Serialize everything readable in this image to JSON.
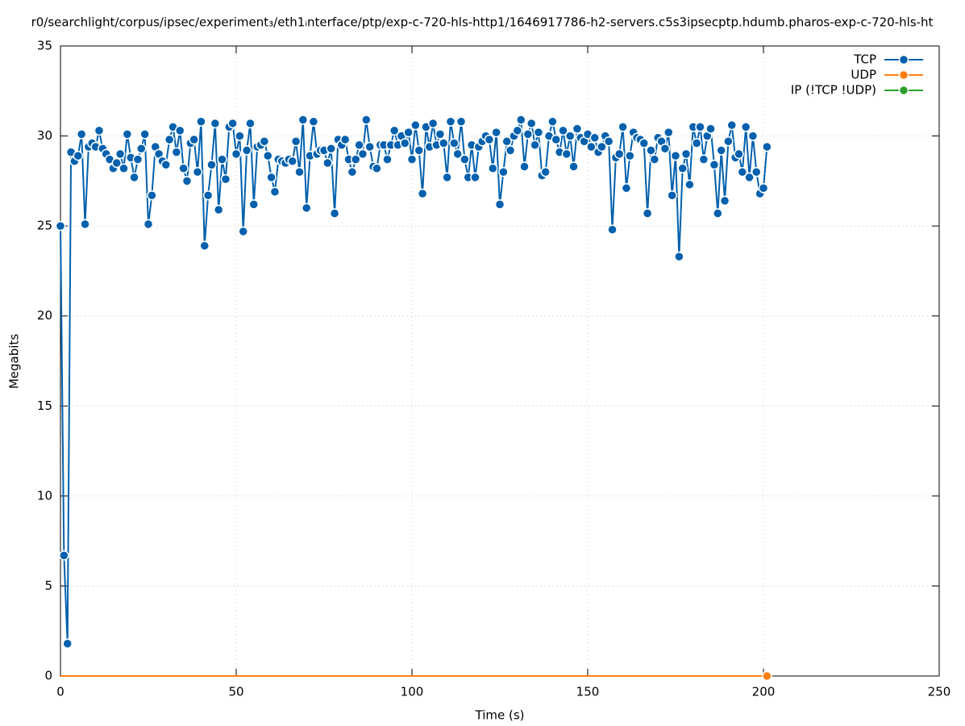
{
  "chart_data": {
    "type": "line",
    "title": "r0/searchlight/corpus/ipsec/experiment₃/eth1ᵢnterface/ptp/exp-c-720-hls-http1/1646917786-h2-servers.c5s3ipsecptp.hdumb.pharos-exp-c-720-hls-ht",
    "x_label": "Time (s)",
    "y_label": "Megabits",
    "xlim": [
      0,
      250
    ],
    "xticks": [
      0,
      50,
      100,
      150,
      200,
      250
    ],
    "ylim": [
      0,
      35
    ],
    "yticks": [
      0,
      5,
      10,
      15,
      20,
      25,
      30,
      35
    ],
    "grid": true,
    "legend": "top-right",
    "x": [
      0,
      1,
      2,
      3,
      4,
      5,
      6,
      7,
      8,
      9,
      10,
      11,
      12,
      13,
      14,
      15,
      16,
      17,
      18,
      19,
      20,
      21,
      22,
      23,
      24,
      25,
      26,
      27,
      28,
      29,
      30,
      31,
      32,
      33,
      34,
      35,
      36,
      37,
      38,
      39,
      40,
      41,
      42,
      43,
      44,
      45,
      46,
      47,
      48,
      49,
      50,
      51,
      52,
      53,
      54,
      55,
      56,
      57,
      58,
      59,
      60,
      61,
      62,
      63,
      64,
      65,
      66,
      67,
      68,
      69,
      70,
      71,
      72,
      73,
      74,
      75,
      76,
      77,
      78,
      79,
      80,
      81,
      82,
      83,
      84,
      85,
      86,
      87,
      88,
      89,
      90,
      91,
      92,
      93,
      94,
      95,
      96,
      97,
      98,
      99,
      100,
      101,
      102,
      103,
      104,
      105,
      106,
      107,
      108,
      109,
      110,
      111,
      112,
      113,
      114,
      115,
      116,
      117,
      118,
      119,
      120,
      121,
      122,
      123,
      124,
      125,
      126,
      127,
      128,
      129,
      130,
      131,
      132,
      133,
      134,
      135,
      136,
      137,
      138,
      139,
      140,
      141,
      142,
      143,
      144,
      145,
      146,
      147,
      148,
      149,
      150,
      151,
      152,
      153,
      154,
      155,
      156,
      157,
      158,
      159,
      160,
      161,
      162,
      163,
      164,
      165,
      166,
      167,
      168,
      169,
      170,
      171,
      172,
      173,
      174,
      175,
      176,
      177,
      178,
      179,
      180,
      181,
      182,
      183,
      184,
      185,
      186,
      187,
      188,
      189,
      190,
      191,
      192,
      193,
      194,
      195,
      196,
      197,
      198,
      199,
      200,
      201
    ],
    "series": [
      {
        "name": "TCP",
        "color": "#0060ad",
        "values": [
          25,
          6.7,
          1.8,
          29.1,
          28.6,
          28.9,
          30.1,
          25.1,
          29.4,
          29.6,
          29.4,
          30.3,
          29.3,
          29.0,
          28.7,
          28.2,
          28.5,
          29.0,
          28.2,
          30.1,
          28.8,
          27.7,
          28.7,
          29.3,
          30.1,
          25.1,
          26.7,
          29.4,
          29.0,
          28.6,
          28.4,
          29.8,
          30.5,
          29.1,
          30.3,
          28.2,
          27.5,
          29.6,
          29.8,
          28.0,
          30.8,
          23.9,
          26.7,
          28.4,
          30.7,
          25.9,
          28.7,
          27.6,
          30.5,
          30.7,
          29.0,
          30.0,
          24.7,
          29.2,
          30.7,
          26.2,
          29.4,
          29.5,
          29.7,
          28.9,
          27.7,
          26.9,
          28.7,
          28.6,
          28.5,
          28.7,
          28.6,
          29.7,
          28.0,
          30.9,
          26.0,
          28.9,
          30.8,
          29.0,
          29.2,
          29.2,
          28.5,
          29.3,
          25.7,
          29.8,
          29.5,
          29.8,
          28.7,
          28.0,
          28.7,
          29.5,
          29.0,
          30.9,
          29.4,
          28.3,
          28.2,
          29.5,
          29.5,
          28.7,
          29.5,
          30.3,
          29.5,
          30.0,
          29.6,
          30.2,
          28.7,
          30.6,
          29.2,
          26.8,
          30.5,
          29.4,
          30.7,
          29.5,
          30.1,
          29.6,
          27.7,
          30.8,
          29.6,
          29.0,
          30.8,
          28.7,
          27.7,
          29.5,
          27.7,
          29.4,
          29.7,
          30.0,
          29.8,
          28.2,
          30.2,
          26.2,
          28.0,
          29.7,
          29.2,
          30.0,
          30.3,
          30.9,
          28.3,
          30.1,
          30.7,
          29.5,
          30.2,
          27.8,
          28.0,
          30.0,
          30.8,
          29.8,
          29.1,
          30.3,
          29.0,
          30.0,
          28.3,
          30.4,
          29.9,
          29.7,
          30.1,
          29.4,
          29.9,
          29.1,
          29.4,
          30.0,
          29.7,
          24.8,
          28.8,
          29.0,
          30.5,
          27.1,
          28.9,
          30.2,
          29.9,
          29.8,
          29.6,
          25.7,
          29.2,
          28.7,
          29.9,
          29.7,
          29.3,
          30.2,
          26.7,
          28.9,
          23.3,
          28.2,
          29.0,
          27.3,
          30.5,
          29.6,
          30.5,
          28.7,
          30.0,
          30.4,
          28.4,
          25.7,
          29.2,
          26.4,
          29.7,
          30.6,
          28.8,
          29.0,
          28.0,
          30.5,
          27.7,
          30.0,
          28.0,
          26.8,
          27.1,
          29.4
        ]
      },
      {
        "name": "UDP",
        "color": "#ff7f0e",
        "values": [
          0,
          0,
          0,
          0,
          0,
          0,
          0,
          0,
          0,
          0,
          0,
          0,
          0,
          0,
          0,
          0,
          0,
          0,
          0,
          0,
          0,
          0,
          0,
          0,
          0,
          0,
          0,
          0,
          0,
          0,
          0,
          0,
          0,
          0,
          0,
          0,
          0,
          0,
          0,
          0,
          0,
          0,
          0,
          0,
          0,
          0,
          0,
          0,
          0,
          0,
          0,
          0,
          0,
          0,
          0,
          0,
          0,
          0,
          0,
          0,
          0,
          0,
          0,
          0,
          0,
          0,
          0,
          0,
          0,
          0,
          0,
          0,
          0,
          0,
          0,
          0,
          0,
          0,
          0,
          0,
          0,
          0,
          0,
          0,
          0,
          0,
          0,
          0,
          0,
          0,
          0,
          0,
          0,
          0,
          0,
          0,
          0,
          0,
          0,
          0,
          0,
          0,
          0,
          0,
          0,
          0,
          0,
          0,
          0,
          0,
          0,
          0,
          0,
          0,
          0,
          0,
          0,
          0,
          0,
          0,
          0,
          0,
          0,
          0,
          0,
          0,
          0,
          0,
          0,
          0,
          0,
          0,
          0,
          0,
          0,
          0,
          0,
          0,
          0,
          0,
          0,
          0,
          0,
          0,
          0,
          0,
          0,
          0,
          0,
          0,
          0,
          0,
          0,
          0,
          0,
          0,
          0,
          0,
          0,
          0,
          0,
          0,
          0,
          0,
          0,
          0,
          0,
          0,
          0,
          0,
          0,
          0,
          0,
          0,
          0,
          0,
          0,
          0,
          0,
          0,
          0,
          0,
          0,
          0,
          0,
          0,
          0,
          0,
          0,
          0,
          0,
          0,
          0,
          0,
          0,
          0,
          0,
          0,
          0,
          0,
          0,
          0
        ]
      },
      {
        "name": "IP (!TCP  !UDP)",
        "color": "#2ca02c",
        "values": [
          0,
          0,
          0,
          0,
          0,
          0,
          0,
          0,
          0,
          0,
          0,
          0,
          0,
          0,
          0,
          0,
          0,
          0,
          0,
          0,
          0,
          0,
          0,
          0,
          0,
          0,
          0,
          0,
          0,
          0,
          0,
          0,
          0,
          0,
          0,
          0,
          0,
          0,
          0,
          0,
          0,
          0,
          0,
          0,
          0,
          0,
          0,
          0,
          0,
          0,
          0,
          0,
          0,
          0,
          0,
          0,
          0,
          0,
          0,
          0,
          0,
          0,
          0,
          0,
          0,
          0,
          0,
          0,
          0,
          0,
          0,
          0,
          0,
          0,
          0,
          0,
          0,
          0,
          0,
          0,
          0,
          0,
          0,
          0,
          0,
          0,
          0,
          0,
          0,
          0,
          0,
          0,
          0,
          0,
          0,
          0,
          0,
          0,
          0,
          0,
          0,
          0,
          0,
          0,
          0,
          0,
          0,
          0,
          0,
          0,
          0,
          0,
          0,
          0,
          0,
          0,
          0,
          0,
          0,
          0,
          0,
          0,
          0,
          0,
          0,
          0,
          0,
          0,
          0,
          0,
          0,
          0,
          0,
          0,
          0,
          0,
          0,
          0,
          0,
          0,
          0,
          0,
          0,
          0,
          0,
          0,
          0,
          0,
          0,
          0,
          0,
          0,
          0,
          0,
          0,
          0,
          0,
          0,
          0,
          0,
          0,
          0,
          0,
          0,
          0,
          0,
          0,
          0,
          0,
          0,
          0,
          0,
          0,
          0,
          0,
          0,
          0,
          0,
          0,
          0,
          0,
          0,
          0,
          0,
          0,
          0,
          0,
          0,
          0,
          0,
          0,
          0,
          0,
          0,
          0,
          0,
          0,
          0,
          0,
          0,
          0,
          0
        ]
      }
    ]
  }
}
